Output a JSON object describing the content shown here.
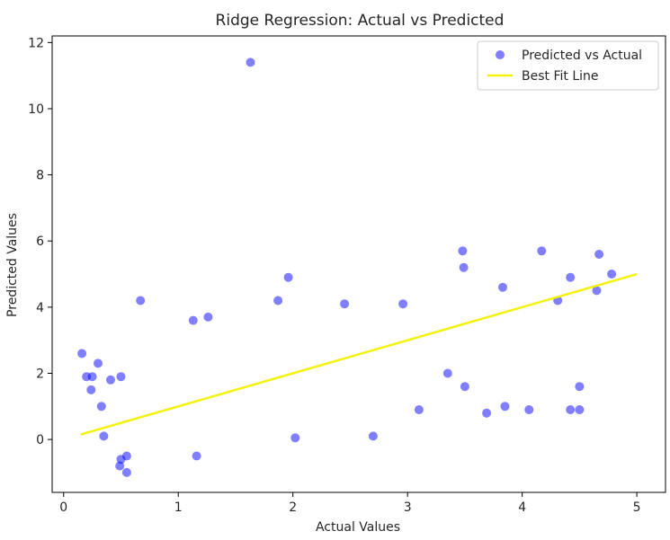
{
  "chart_data": {
    "type": "scatter",
    "title": "Ridge Regression: Actual vs Predicted",
    "xlabel": "Actual Values",
    "ylabel": "Predicted Values",
    "xlim": [
      -0.1,
      5.25
    ],
    "ylim": [
      -1.6,
      12.2
    ],
    "x_ticks": [
      0,
      1,
      2,
      3,
      4,
      5
    ],
    "y_ticks": [
      0,
      2,
      4,
      6,
      8,
      10,
      12
    ],
    "grid": false,
    "legend_position": "top-right",
    "series": [
      {
        "name": "Predicted vs Actual",
        "kind": "scatter",
        "color": "#0000ff",
        "opacity": 0.5,
        "points": [
          [
            1.63,
            11.4
          ],
          [
            0.67,
            4.2
          ],
          [
            1.96,
            4.9
          ],
          [
            3.48,
            5.7
          ],
          [
            3.49,
            5.2
          ],
          [
            4.17,
            5.7
          ],
          [
            4.67,
            5.6
          ],
          [
            4.42,
            4.9
          ],
          [
            1.13,
            3.6
          ],
          [
            1.26,
            3.7
          ],
          [
            2.45,
            4.1
          ],
          [
            1.87,
            4.2
          ],
          [
            2.96,
            4.1
          ],
          [
            4.5,
            1.6
          ],
          [
            4.42,
            0.9
          ],
          [
            4.5,
            0.9
          ],
          [
            4.06,
            0.9
          ],
          [
            3.1,
            0.9
          ],
          [
            2.7,
            0.1
          ],
          [
            2.02,
            0.05
          ],
          [
            0.55,
            -1.0
          ],
          [
            0.49,
            -0.8
          ],
          [
            0.5,
            -0.6
          ],
          [
            0.55,
            -0.5
          ],
          [
            1.16,
            -0.5
          ],
          [
            0.16,
            2.6
          ],
          [
            0.25,
            1.9
          ],
          [
            0.24,
            1.5
          ],
          [
            0.2,
            1.9
          ],
          [
            0.35,
            0.1
          ],
          [
            0.33,
            1.0
          ],
          [
            0.3,
            2.3
          ],
          [
            0.41,
            1.8
          ],
          [
            0.5,
            1.9
          ],
          [
            3.69,
            0.8
          ],
          [
            3.85,
            1.0
          ],
          [
            3.5,
            1.6
          ],
          [
            3.35,
            2.0
          ],
          [
            4.31,
            4.2
          ],
          [
            3.83,
            4.6
          ],
          [
            4.65,
            4.5
          ],
          [
            4.78,
            5.0
          ]
        ]
      },
      {
        "name": "Best Fit Line",
        "kind": "line",
        "color": "#f2f20d",
        "points": [
          [
            0.15,
            0.15
          ],
          [
            5.0,
            5.0
          ]
        ]
      }
    ]
  }
}
